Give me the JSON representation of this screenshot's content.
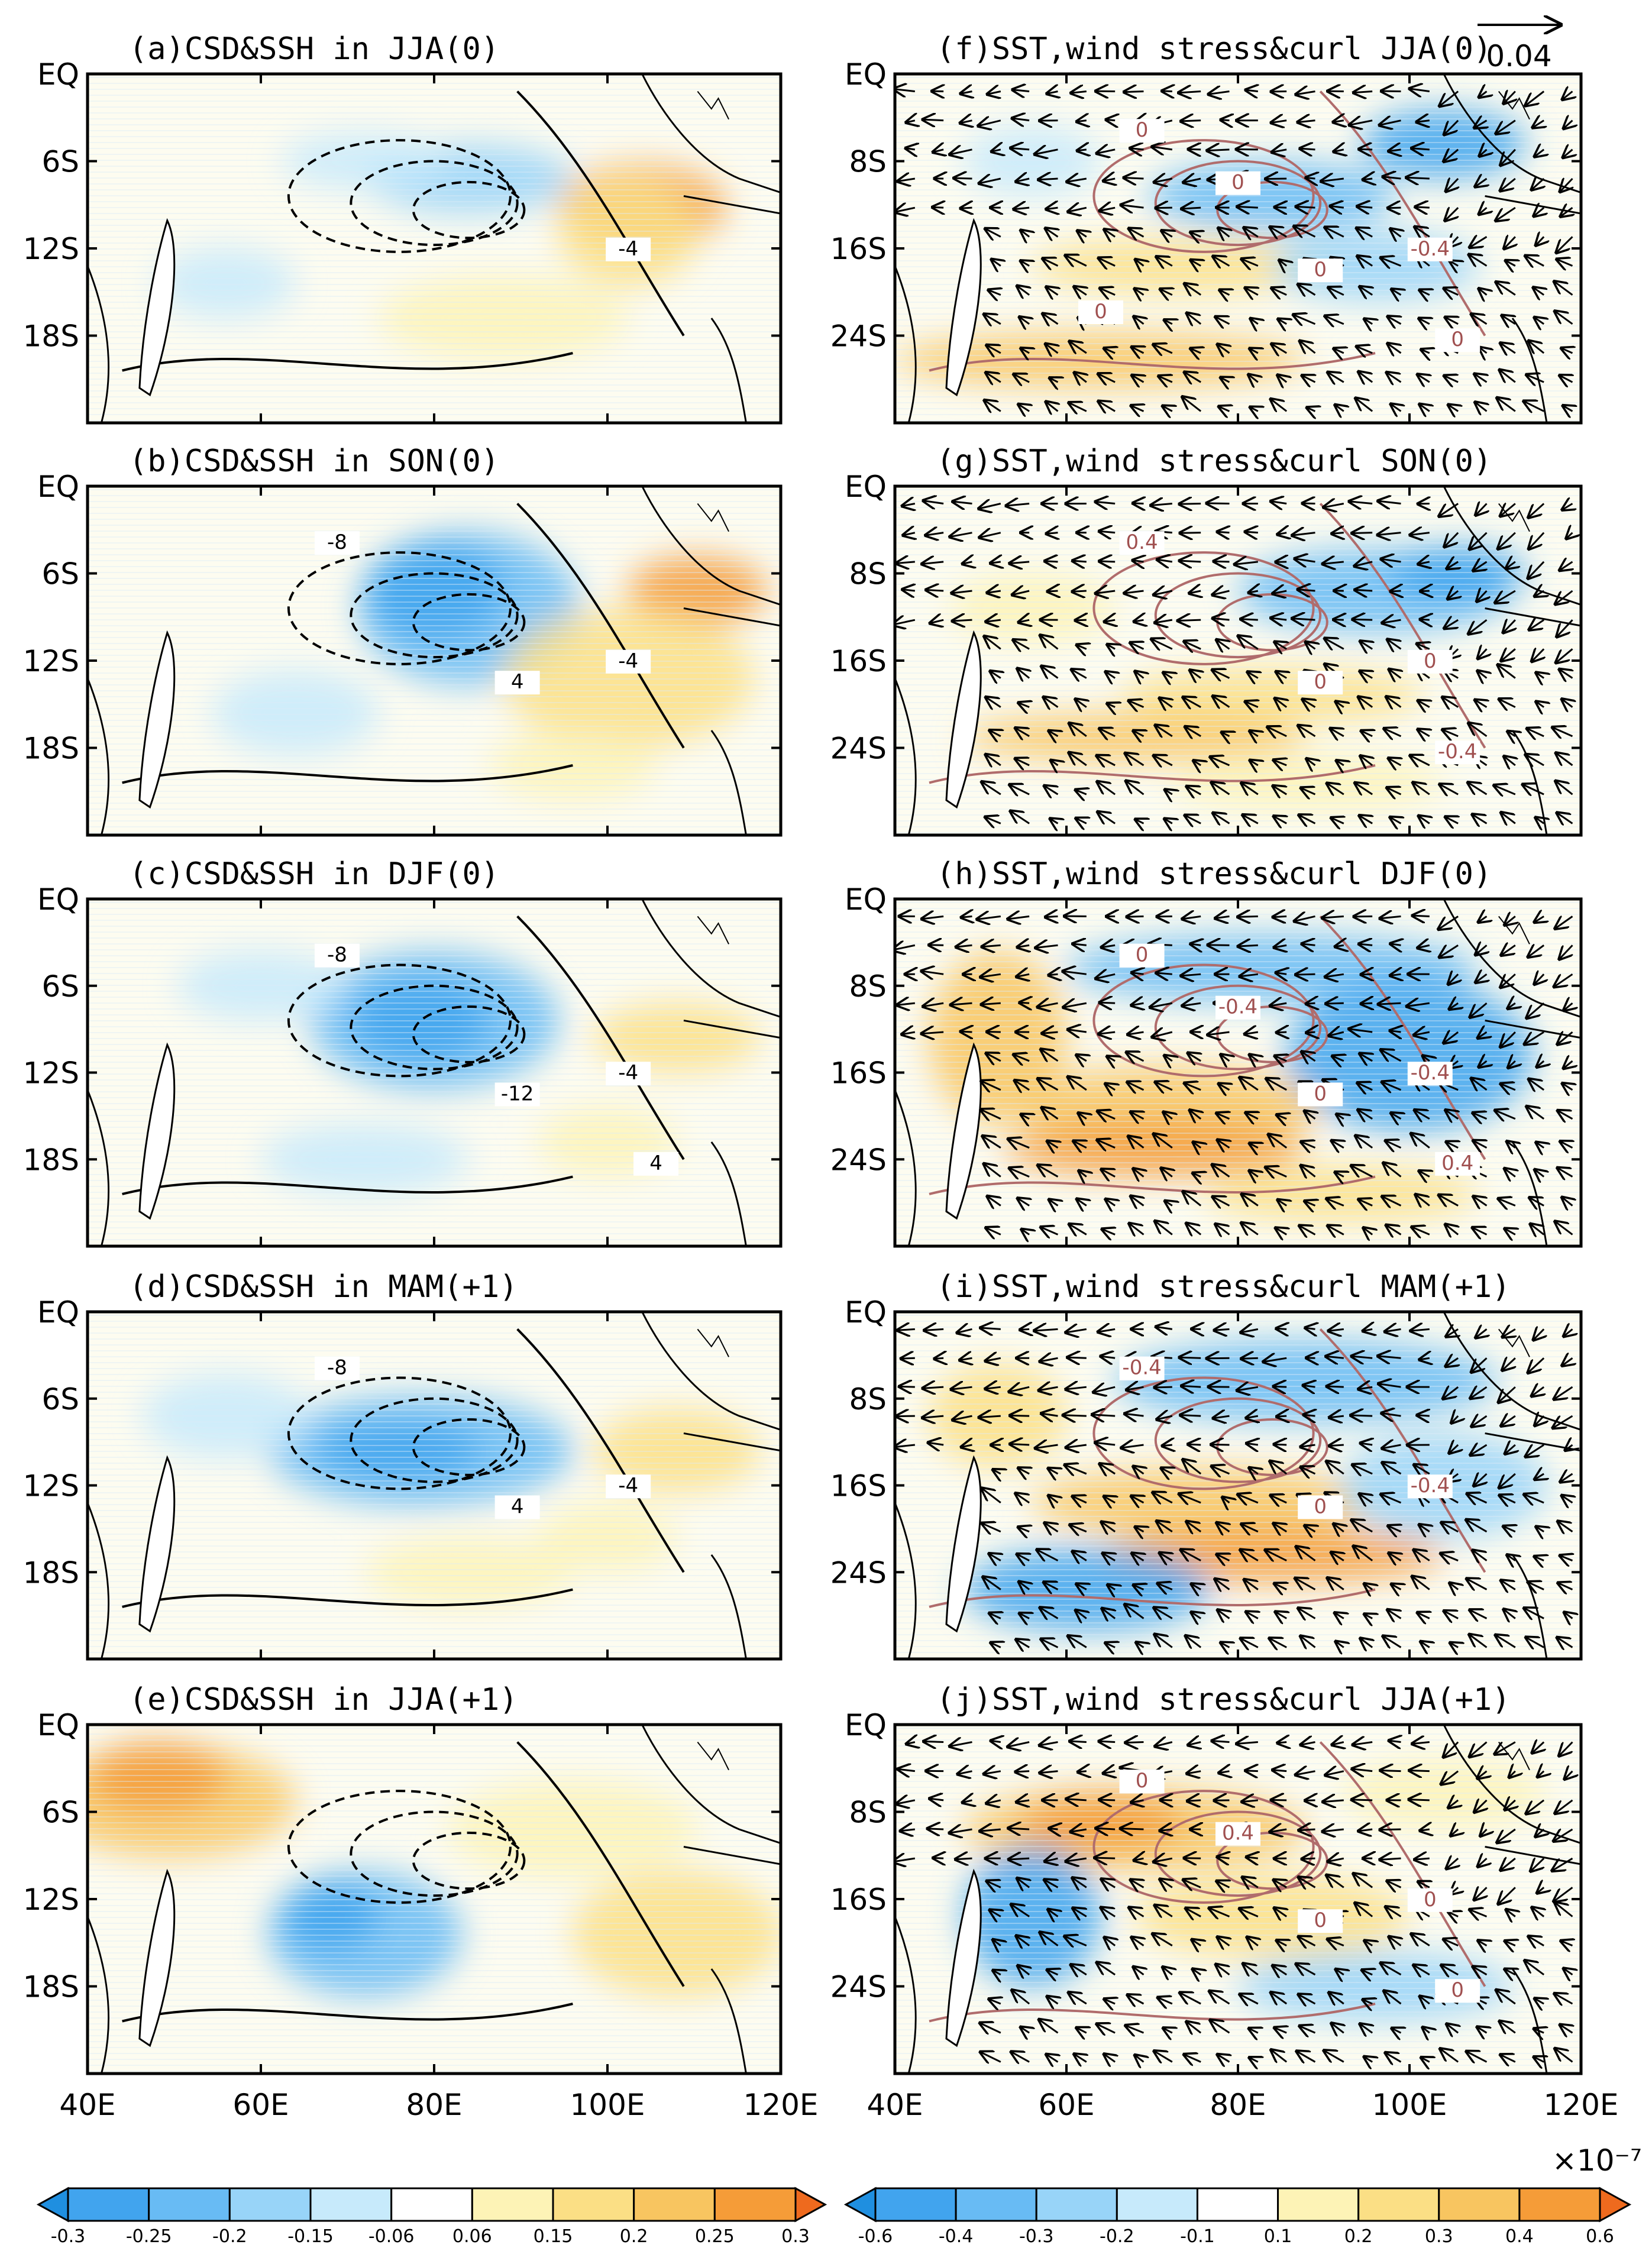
{
  "chart_data": {
    "type": "heatmap",
    "figure_panels": [
      {
        "id": "a",
        "title": "(a)CSD&SSH in JJA(0)",
        "column": "left",
        "contour_labels": [
          "-4"
        ]
      },
      {
        "id": "b",
        "title": "(b)CSD&SSH in SON(0)",
        "column": "left",
        "contour_labels": [
          "-4",
          "-8",
          "4"
        ]
      },
      {
        "id": "c",
        "title": "(c)CSD&SSH in DJF(0)",
        "column": "left",
        "contour_labels": [
          "-4",
          "-8",
          "-12",
          "4"
        ]
      },
      {
        "id": "d",
        "title": "(d)CSD&SSH in MAM(+1)",
        "column": "left",
        "contour_labels": [
          "-4",
          "-8",
          "4"
        ]
      },
      {
        "id": "e",
        "title": "(e)CSD&SSH in JJA(+1)",
        "column": "left",
        "contour_labels": []
      },
      {
        "id": "f",
        "title": "(f)SST,wind stress&curl JJA(0)",
        "column": "right",
        "contour_labels": [
          "-0.4",
          "0",
          "0",
          "0",
          "0",
          "0"
        ]
      },
      {
        "id": "g",
        "title": "(g)SST,wind stress&curl SON(0)",
        "column": "right",
        "contour_labels": [
          "0",
          "0.4",
          "0",
          "-0.4"
        ]
      },
      {
        "id": "h",
        "title": "(h)SST,wind stress&curl DJF(0)",
        "column": "right",
        "contour_labels": [
          "-0.4",
          "0",
          "0",
          "0.4",
          "-0.4"
        ]
      },
      {
        "id": "i",
        "title": "(i)SST,wind stress&curl MAM(+1)",
        "column": "right",
        "contour_labels": [
          "-0.4",
          "-0.4",
          "0"
        ]
      },
      {
        "id": "j",
        "title": "(j)SST,wind stress&curl JJA(+1)",
        "column": "right",
        "contour_labels": [
          "0",
          "0",
          "0",
          "0",
          "0.4"
        ]
      }
    ],
    "left_yticks": [
      "EQ",
      "6S",
      "12S",
      "18S"
    ],
    "right_yticks": [
      "EQ",
      "8S",
      "16S",
      "24S"
    ],
    "left_xticks": [
      "40E",
      "60E",
      "80E",
      "100E",
      "120E"
    ],
    "right_xticks": [
      "40E",
      "60E",
      "80E",
      "100E",
      "120E"
    ],
    "lon_range": [
      40,
      120
    ],
    "left_lat_range": [
      0,
      -24
    ],
    "right_lat_range": [
      0,
      -32
    ],
    "reference_vector": {
      "value": "0.04"
    },
    "left_colorbar": {
      "levels": [
        "-0.3",
        "-0.25",
        "-0.2",
        "-0.15",
        "-0.06",
        "0.06",
        "0.15",
        "0.2",
        "0.25",
        "0.3"
      ],
      "colors": [
        "#1f8fe0",
        "#41a4ee",
        "#68bbf4",
        "#98d4f8",
        "#c7eafb",
        "#ffffff",
        "#fdf3b6",
        "#fbdf85",
        "#f8c560",
        "#f59c38",
        "#ee6a1e"
      ]
    },
    "right_colorbar": {
      "levels": [
        "-0.6",
        "-0.4",
        "-0.3",
        "-0.2",
        "-0.1",
        "0.1",
        "0.2",
        "0.3",
        "0.4",
        "0.6"
      ],
      "colors": [
        "#1f8fe0",
        "#41a4ee",
        "#68bbf4",
        "#98d4f8",
        "#c7eafb",
        "#ffffff",
        "#fdf3b6",
        "#fbdf85",
        "#f8c560",
        "#f59c38",
        "#ee6a1e"
      ],
      "scale_label": "×10⁻⁷"
    }
  }
}
